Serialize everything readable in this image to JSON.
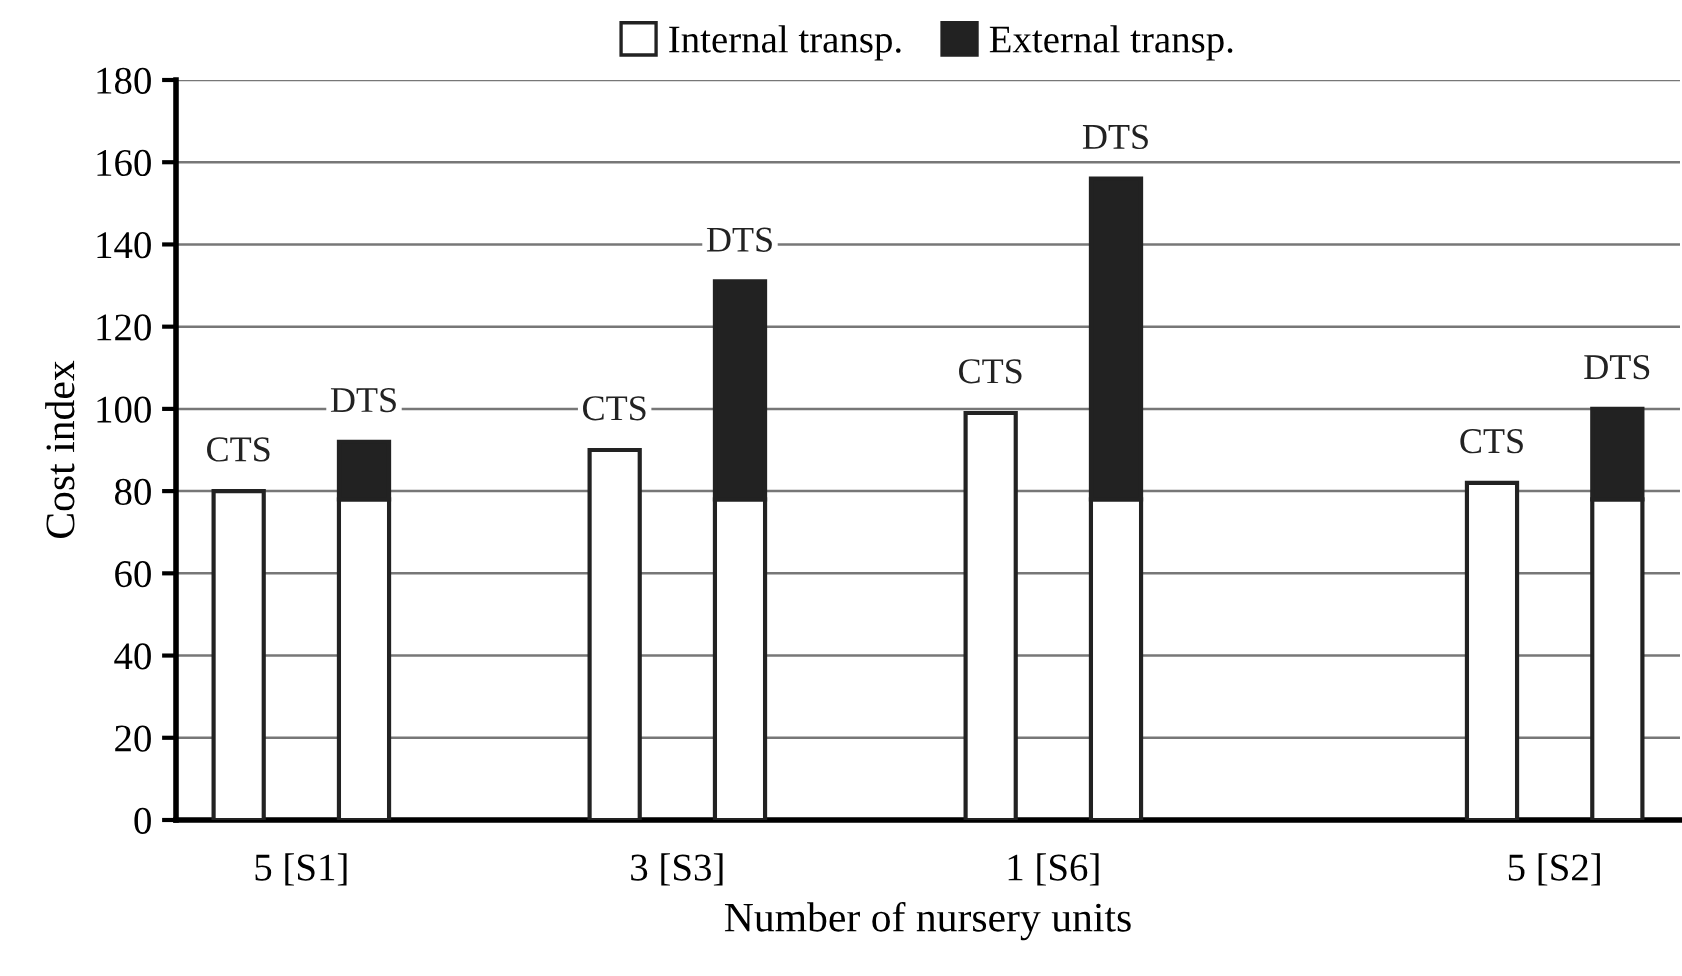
{
  "chart_data": {
    "type": "bar",
    "stacked": true,
    "xlabel": "Number of nursery units",
    "ylabel": "Cost index",
    "categories": [
      null,
      null,
      null,
      null,
      null,
      null,
      null,
      null,
      null,
      null,
      null,
      null
    ],
    "ylim": [
      0,
      180
    ],
    "yticks": [
      0,
      20,
      40,
      60,
      80,
      100,
      120,
      140,
      160,
      180
    ],
    "series": [
      {
        "name": "Internal transp.",
        "color": "#ffffff",
        "values": [
          80,
          78,
          null,
          90,
          78,
          null,
          99,
          78,
          null,
          null,
          82,
          78
        ]
      },
      {
        "name": "External transp.",
        "color": "#222222",
        "values": [
          null,
          14,
          null,
          null,
          53,
          null,
          null,
          78,
          null,
          null,
          null,
          22
        ]
      }
    ],
    "annotations": [
      "CTS",
      "DTS",
      "CTS",
      "DTS",
      "CTS",
      "DTS",
      "CTS",
      "DTS",
      "5 [S1]",
      "3 [S3]",
      "1 [S6]",
      "5 [S2]"
    ],
    "grid": "y",
    "legend": "top"
  }
}
